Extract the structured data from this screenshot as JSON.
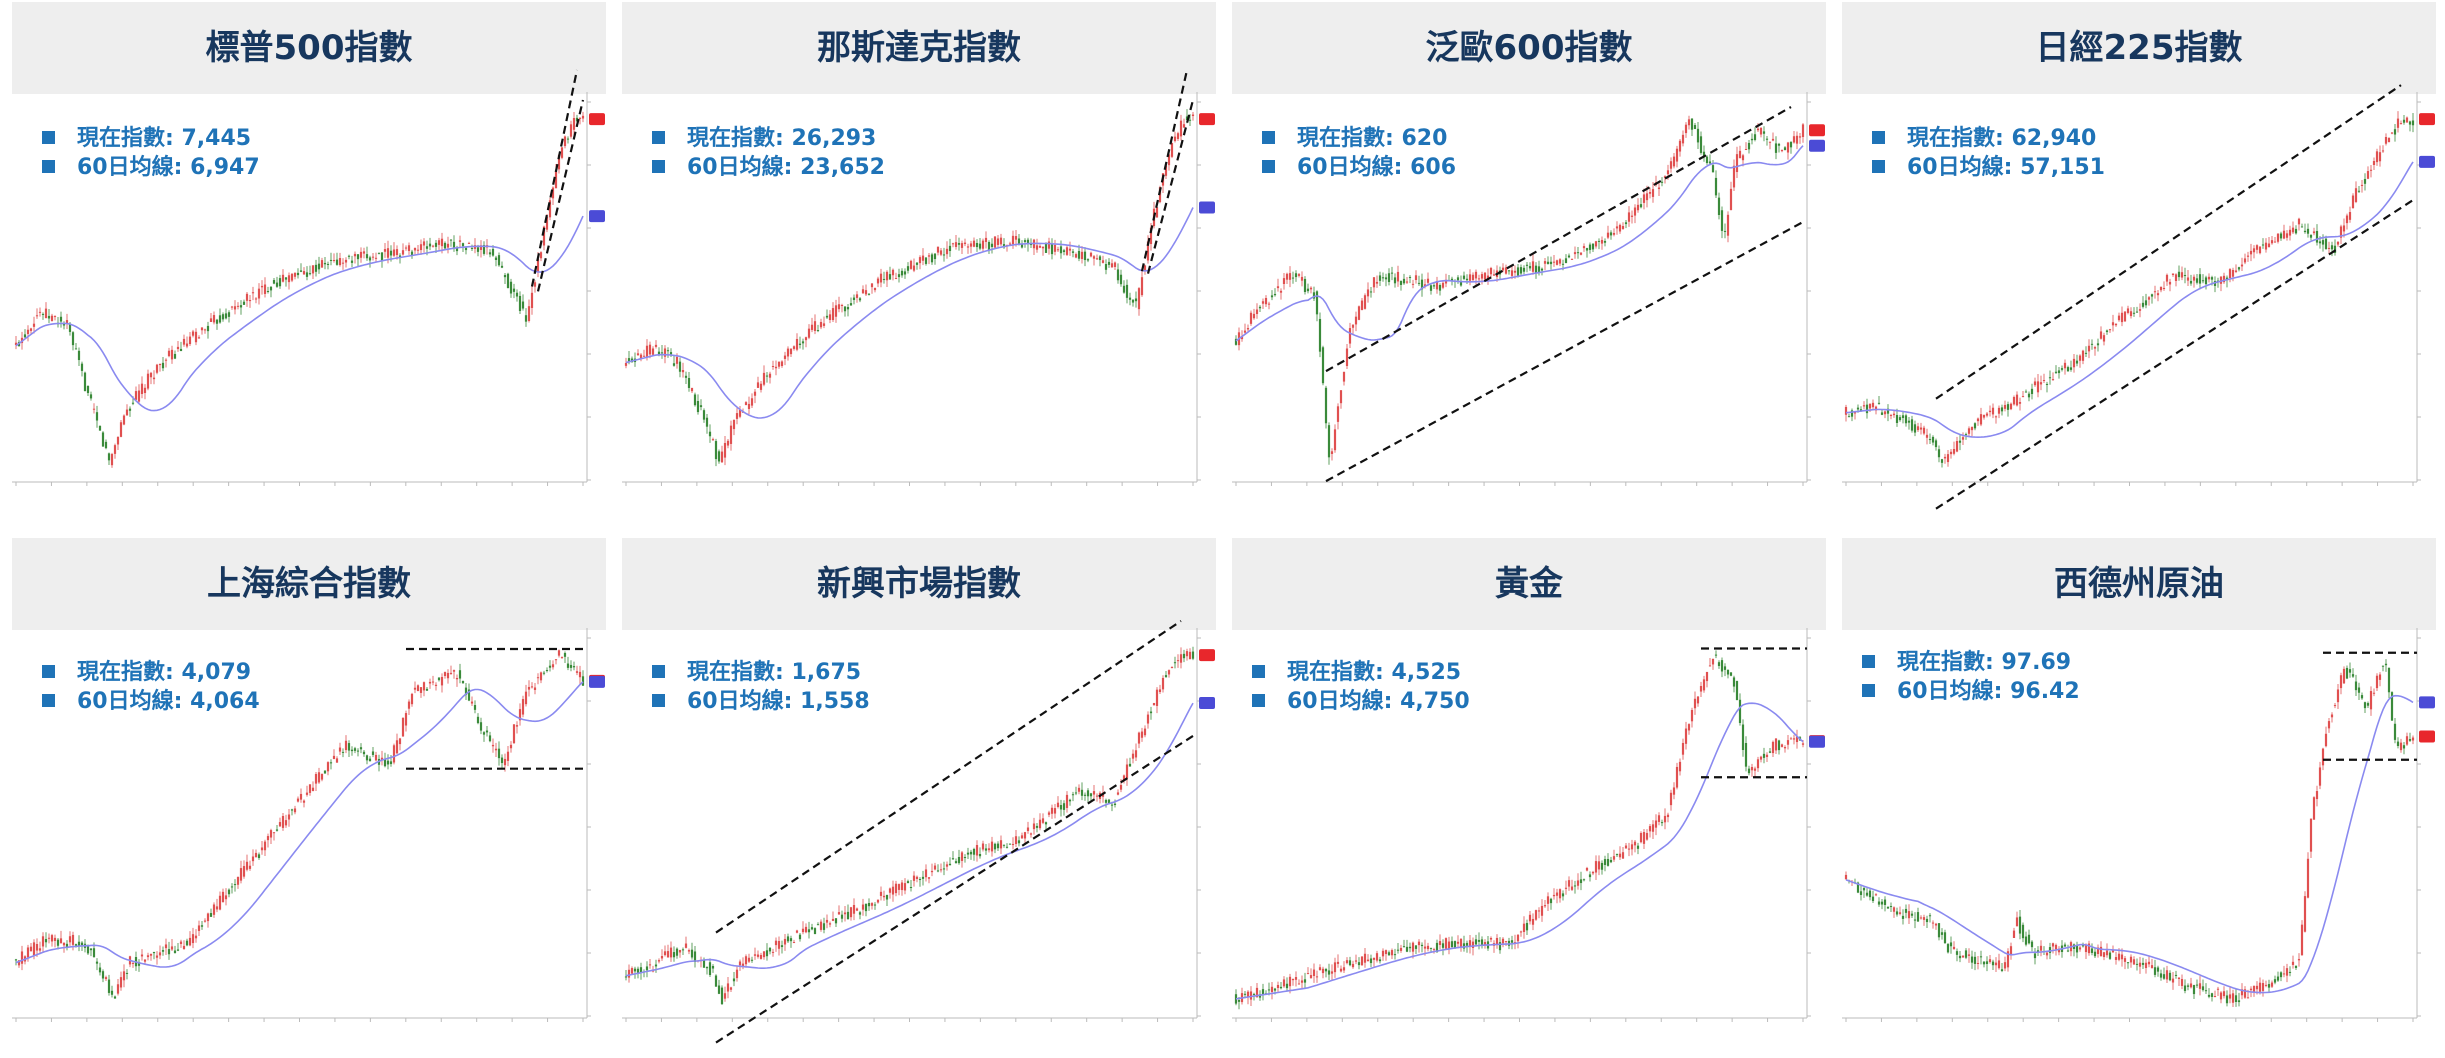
{
  "labels": {
    "current": "現在指數: ",
    "ma60": "60日均線: "
  },
  "colors": {
    "accent": "#1f73b7",
    "title": "#17375e",
    "up": "#e05050",
    "down": "#3a8a3a",
    "ma": "#8a8af0",
    "price_tag": "#e8272c",
    "ma_tag": "#4b4bd6"
  },
  "chart_data": [
    {
      "type": "candlestick",
      "title": "標普500指數",
      "current": "7,445",
      "ma60": "6,947",
      "trend_lines": "rising-channel",
      "path": [
        [
          0,
          5800
        ],
        [
          0.04,
          6050
        ],
        [
          0.09,
          5950
        ],
        [
          0.13,
          5400
        ],
        [
          0.165,
          4950
        ],
        [
          0.19,
          5300
        ],
        [
          0.25,
          5650
        ],
        [
          0.34,
          5950
        ],
        [
          0.45,
          6250
        ],
        [
          0.55,
          6400
        ],
        [
          0.66,
          6470
        ],
        [
          0.76,
          6550
        ],
        [
          0.84,
          6480
        ],
        [
          0.885,
          6120
        ],
        [
          0.9,
          6000
        ],
        [
          0.93,
          6600
        ],
        [
          0.96,
          7200
        ],
        [
          0.985,
          7445
        ],
        [
          1,
          7445
        ]
      ]
    },
    {
      "type": "candlestick",
      "title": "那斯達克指數",
      "current": "26,293",
      "ma60": "23,652",
      "trend_lines": "rising-channel",
      "path": [
        [
          0,
          19500
        ],
        [
          0.05,
          19900
        ],
        [
          0.09,
          19500
        ],
        [
          0.13,
          18200
        ],
        [
          0.165,
          16700
        ],
        [
          0.19,
          17800
        ],
        [
          0.25,
          19200
        ],
        [
          0.34,
          20600
        ],
        [
          0.45,
          21800
        ],
        [
          0.57,
          22700
        ],
        [
          0.68,
          22900
        ],
        [
          0.78,
          22600
        ],
        [
          0.86,
          22200
        ],
        [
          0.885,
          21300
        ],
        [
          0.9,
          21100
        ],
        [
          0.93,
          23600
        ],
        [
          0.96,
          25500
        ],
        [
          0.985,
          26293
        ],
        [
          1,
          26293
        ]
      ]
    },
    {
      "type": "candlestick",
      "title": "泛歐600指數",
      "current": "620",
      "ma60": "606",
      "trend_lines": "rising-channel",
      "path": [
        [
          0,
          525
        ],
        [
          0.04,
          540
        ],
        [
          0.1,
          555
        ],
        [
          0.14,
          545
        ],
        [
          0.165,
          470
        ],
        [
          0.2,
          530
        ],
        [
          0.25,
          555
        ],
        [
          0.35,
          550
        ],
        [
          0.45,
          555
        ],
        [
          0.57,
          560
        ],
        [
          0.67,
          575
        ],
        [
          0.76,
          600
        ],
        [
          0.8,
          625
        ],
        [
          0.84,
          600
        ],
        [
          0.86,
          570
        ],
        [
          0.88,
          605
        ],
        [
          0.92,
          620
        ],
        [
          0.96,
          610
        ],
        [
          1,
          620
        ]
      ]
    },
    {
      "type": "candlestick",
      "title": "日經225指數",
      "current": "62,940",
      "ma60": "57,151",
      "trend_lines": "rising-channel",
      "path": [
        [
          0,
          39500
        ],
        [
          0.05,
          40000
        ],
        [
          0.1,
          39000
        ],
        [
          0.15,
          37500
        ],
        [
          0.17,
          35500
        ],
        [
          0.22,
          38500
        ],
        [
          0.3,
          40500
        ],
        [
          0.4,
          43500
        ],
        [
          0.5,
          47500
        ],
        [
          0.58,
          50500
        ],
        [
          0.66,
          50000
        ],
        [
          0.74,
          53000
        ],
        [
          0.8,
          54500
        ],
        [
          0.86,
          52500
        ],
        [
          0.9,
          57000
        ],
        [
          0.95,
          61000
        ],
        [
          0.98,
          62940
        ],
        [
          1,
          62940
        ]
      ]
    },
    {
      "type": "candlestick",
      "title": "上海綜合指數",
      "current": "4,079",
      "ma60": "4,064",
      "trend_lines": "horizontal-range",
      "path": [
        [
          0,
          3300
        ],
        [
          0.05,
          3360
        ],
        [
          0.12,
          3360
        ],
        [
          0.15,
          3280
        ],
        [
          0.17,
          3200
        ],
        [
          0.2,
          3300
        ],
        [
          0.3,
          3350
        ],
        [
          0.4,
          3550
        ],
        [
          0.5,
          3750
        ],
        [
          0.58,
          3900
        ],
        [
          0.66,
          3850
        ],
        [
          0.7,
          4050
        ],
        [
          0.78,
          4100
        ],
        [
          0.82,
          3950
        ],
        [
          0.86,
          3850
        ],
        [
          0.9,
          4050
        ],
        [
          0.96,
          4150
        ],
        [
          1,
          4079
        ]
      ]
    },
    {
      "type": "candlestick",
      "title": "新興市場指數",
      "current": "1,675",
      "ma60": "1,558",
      "trend_lines": "rising-channel",
      "path": [
        [
          0,
          1120
        ],
        [
          0.05,
          1140
        ],
        [
          0.1,
          1170
        ],
        [
          0.15,
          1130
        ],
        [
          0.17,
          1080
        ],
        [
          0.2,
          1140
        ],
        [
          0.3,
          1190
        ],
        [
          0.4,
          1230
        ],
        [
          0.5,
          1280
        ],
        [
          0.6,
          1330
        ],
        [
          0.7,
          1360
        ],
        [
          0.8,
          1440
        ],
        [
          0.86,
          1420
        ],
        [
          0.9,
          1520
        ],
        [
          0.95,
          1640
        ],
        [
          0.98,
          1675
        ],
        [
          1,
          1675
        ]
      ]
    },
    {
      "type": "candlestick",
      "title": "黃金",
      "current": "4,525",
      "ma60": "4,750",
      "trend_lines": "horizontal-range",
      "path": [
        [
          0,
          2650
        ],
        [
          0.08,
          2750
        ],
        [
          0.18,
          2880
        ],
        [
          0.28,
          3000
        ],
        [
          0.38,
          3050
        ],
        [
          0.48,
          3050
        ],
        [
          0.55,
          3350
        ],
        [
          0.63,
          3600
        ],
        [
          0.7,
          3750
        ],
        [
          0.76,
          4000
        ],
        [
          0.8,
          4700
        ],
        [
          0.84,
          5150
        ],
        [
          0.88,
          4950
        ],
        [
          0.9,
          4300
        ],
        [
          0.95,
          4500
        ],
        [
          1,
          4525
        ]
      ]
    },
    {
      "type": "candlestick",
      "title": "西德州原油",
      "current": "97.69",
      "ma60": "96.42",
      "trend_lines": "horizontal-range",
      "path": [
        [
          0,
          76
        ],
        [
          0.05,
          73
        ],
        [
          0.1,
          71
        ],
        [
          0.15,
          70
        ],
        [
          0.18,
          66
        ],
        [
          0.22,
          64
        ],
        [
          0.28,
          63
        ],
        [
          0.3,
          70
        ],
        [
          0.33,
          65
        ],
        [
          0.4,
          66
        ],
        [
          0.5,
          64
        ],
        [
          0.6,
          60
        ],
        [
          0.68,
          58
        ],
        [
          0.74,
          60
        ],
        [
          0.8,
          64
        ],
        [
          0.82,
          85
        ],
        [
          0.85,
          100
        ],
        [
          0.88,
          108
        ],
        [
          0.92,
          102
        ],
        [
          0.95,
          110
        ],
        [
          0.97,
          95
        ],
        [
          1,
          97.69
        ]
      ]
    }
  ]
}
